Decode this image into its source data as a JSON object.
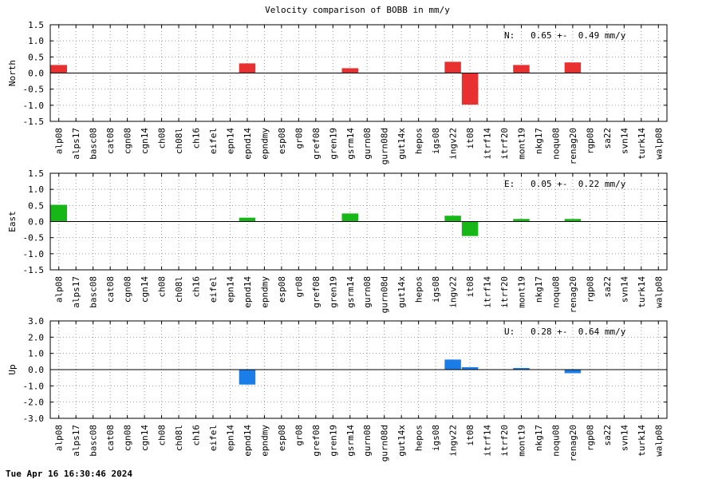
{
  "page": {
    "title": "Velocity comparison of BOBB in mm/y",
    "footer": "Tue Apr 16 16:30:46 2024"
  },
  "chart_data": {
    "type": "bar",
    "title": "Velocity comparison of BOBB in mm/y",
    "categories": [
      "alp08",
      "alps17",
      "basc08",
      "cat08",
      "cgn08",
      "cgn14",
      "ch08",
      "ch08l",
      "ch16",
      "eifel",
      "epn14",
      "epnd14",
      "epndmy",
      "esp08",
      "gr08",
      "gref08",
      "gren19",
      "gsrm14",
      "gurn08",
      "gurn08d",
      "gut14x",
      "hepos",
      "igs08",
      "ingv22",
      "it08",
      "itrf14",
      "itrf20",
      "mont19",
      "nkg17",
      "noqu08",
      "renag20",
      "rgp08",
      "sa22",
      "svn14",
      "turk14",
      "walp08"
    ],
    "grid": true,
    "panels": [
      {
        "name": "North",
        "ylabel": "North",
        "color": "#e83030",
        "ylim": [
          -1.5,
          1.5
        ],
        "yticks": [
          "1.5",
          "1.0",
          "0.5",
          "0.0",
          "-0.5",
          "-1.0",
          "-1.5"
        ],
        "annotation": "N:   0.65 +-  0.49 mm/y",
        "values": [
          0.25,
          null,
          null,
          null,
          null,
          null,
          null,
          null,
          null,
          null,
          null,
          0.3,
          null,
          null,
          null,
          null,
          null,
          0.15,
          null,
          null,
          null,
          null,
          null,
          0.35,
          -0.98,
          null,
          null,
          0.25,
          null,
          null,
          0.33,
          null,
          null,
          null,
          null,
          null
        ]
      },
      {
        "name": "East",
        "ylabel": "East",
        "color": "#16b716",
        "ylim": [
          -1.5,
          1.5
        ],
        "yticks": [
          "1.5",
          "1.0",
          "0.5",
          "0.0",
          "-0.5",
          "-1.0",
          "-1.5"
        ],
        "annotation": "E:   0.05 +-  0.22 mm/y",
        "values": [
          0.52,
          null,
          null,
          null,
          null,
          null,
          null,
          null,
          null,
          null,
          null,
          0.12,
          null,
          null,
          null,
          null,
          null,
          0.25,
          null,
          null,
          null,
          null,
          null,
          0.18,
          -0.45,
          null,
          null,
          0.08,
          null,
          null,
          0.08,
          null,
          null,
          null,
          null,
          null
        ]
      },
      {
        "name": "Up",
        "ylabel": "Up",
        "color": "#1a7de8",
        "ylim": [
          -3.0,
          3.0
        ],
        "yticks": [
          "3.0",
          "2.0",
          "1.0",
          "0.0",
          "-1.0",
          "-2.0",
          "-3.0"
        ],
        "annotation": "U:   0.28 +-  0.64 mm/y",
        "values": [
          null,
          null,
          null,
          null,
          null,
          null,
          null,
          null,
          null,
          null,
          null,
          -0.92,
          null,
          null,
          null,
          null,
          null,
          null,
          null,
          null,
          null,
          null,
          null,
          0.62,
          0.15,
          null,
          null,
          0.1,
          null,
          null,
          -0.22,
          null,
          null,
          null,
          null,
          null
        ]
      }
    ]
  }
}
